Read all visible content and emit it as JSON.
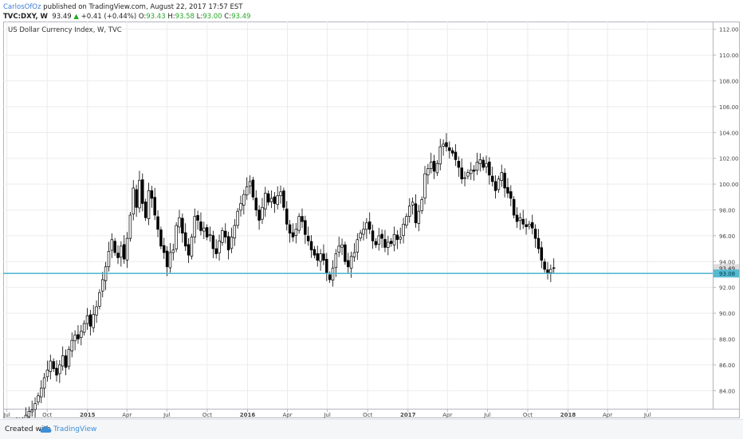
{
  "header": {
    "author": "CarlosOfOz",
    "published_text": "published on TradingView.com, August 22, 2017 17:57 EST",
    "symbol": "TVC:DXY, W",
    "last": "93.49",
    "change_arrow": "▲",
    "change": "+0.41 (+0.44%)",
    "o_label": "O:",
    "o_value": "93.43",
    "h_label": "H:",
    "h_value": "93.58",
    "l_label": "L:",
    "l_value": "93.00",
    "c_label": "C:",
    "c_value": "93.49"
  },
  "footer": {
    "created_with": "Created with",
    "brand": "TradingView",
    "logo_icon": "tradingview-cloud-icon"
  },
  "colors": {
    "up_candle": "#ffffff",
    "down_candle": "#000000",
    "support_line": "#56b9d0",
    "price_tag_last": "#dddddd",
    "price_tag_support": "#56b9d0",
    "grid": "#ececec",
    "author": "#3d7dd6",
    "change_up": "#26a826"
  },
  "chart_data": {
    "type": "candlestick",
    "title": "US Dollar Currency Index, W, TVC",
    "ylim": [
      82.6,
      112.6
    ],
    "y_ticks": [
      "84.00",
      "86.00",
      "88.00",
      "90.00",
      "92.00",
      "94.00",
      "96.00",
      "98.00",
      "100.00",
      "102.00",
      "104.00",
      "106.00",
      "108.00",
      "110.00",
      "112.00"
    ],
    "x_ticks": [
      "Jul",
      "Oct",
      "2015",
      "Apr",
      "Jul",
      "Oct",
      "2016",
      "Apr",
      "Jul",
      "Oct",
      "2017",
      "Apr",
      "Jul",
      "Oct",
      "2018",
      "Apr",
      "Jul"
    ],
    "x_ticks_bold": [
      "2015",
      "2016",
      "2017",
      "2018"
    ],
    "support_level": 93.08,
    "price_labels": [
      {
        "label": "93.49",
        "value": 93.49,
        "kind": "last"
      },
      {
        "label": "93.08",
        "value": 93.08,
        "kind": "support"
      }
    ],
    "start": "2014-06-30",
    "interval": "weekly",
    "closes": [
      80.3,
      80.4,
      80.9,
      81.2,
      81.4,
      81.7,
      82.1,
      82.4,
      82.5,
      83.0,
      83.6,
      84.2,
      85.0,
      85.6,
      86.3,
      85.7,
      85.2,
      86.0,
      86.7,
      85.8,
      87.2,
      87.9,
      88.3,
      88.0,
      88.6,
      89.2,
      89.8,
      89.0,
      89.9,
      90.5,
      91.6,
      92.6,
      93.6,
      94.8,
      95.7,
      94.7,
      94.3,
      95.2,
      94.2,
      95.8,
      97.6,
      99.7,
      98.2,
      100.3,
      98.5,
      97.4,
      99.5,
      98.9,
      97.6,
      96.5,
      95.2,
      94.7,
      93.6,
      94.7,
      94.9,
      96.8,
      97.4,
      96.2,
      95.2,
      94.5,
      95.9,
      97.5,
      97.2,
      96.4,
      96.6,
      95.9,
      96.1,
      95.0,
      94.6,
      95.6,
      96.4,
      95.9,
      94.9,
      95.9,
      96.8,
      97.9,
      98.5,
      99.2,
      99.8,
      100.2,
      99.0,
      98.0,
      97.2,
      98.2,
      99.3,
      98.6,
      98.9,
      98.5,
      99.1,
      99.4,
      98.2,
      96.9,
      96.2,
      95.9,
      96.5,
      97.5,
      97.1,
      96.1,
      95.6,
      94.9,
      94.5,
      94.1,
      94.6,
      94.1,
      93.1,
      92.6,
      93.5,
      94.6,
      95.2,
      95.3,
      94.0,
      93.6,
      94.4,
      94.7,
      95.7,
      96.2,
      96.5,
      97.0,
      96.5,
      95.6,
      95.3,
      96.0,
      95.8,
      95.1,
      95.5,
      95.4,
      96.1,
      95.7,
      95.9,
      96.9,
      97.5,
      98.3,
      98.6,
      97.0,
      97.9,
      98.8,
      100.8,
      101.2,
      101.7,
      101.0,
      101.6,
      102.9,
      103.1,
      102.9,
      102.6,
      102.4,
      101.9,
      101.3,
      100.4,
      100.5,
      100.9,
      101.1,
      101.0,
      101.7,
      101.9,
      101.3,
      101.6,
      100.7,
      100.2,
      99.5,
      100.4,
      100.9,
      99.7,
      99.3,
      98.9,
      97.6,
      97.1,
      97.4,
      96.9,
      96.7,
      96.9,
      96.6,
      95.8,
      95.0,
      94.1,
      93.4,
      93.1,
      93.4,
      93.5
    ]
  }
}
